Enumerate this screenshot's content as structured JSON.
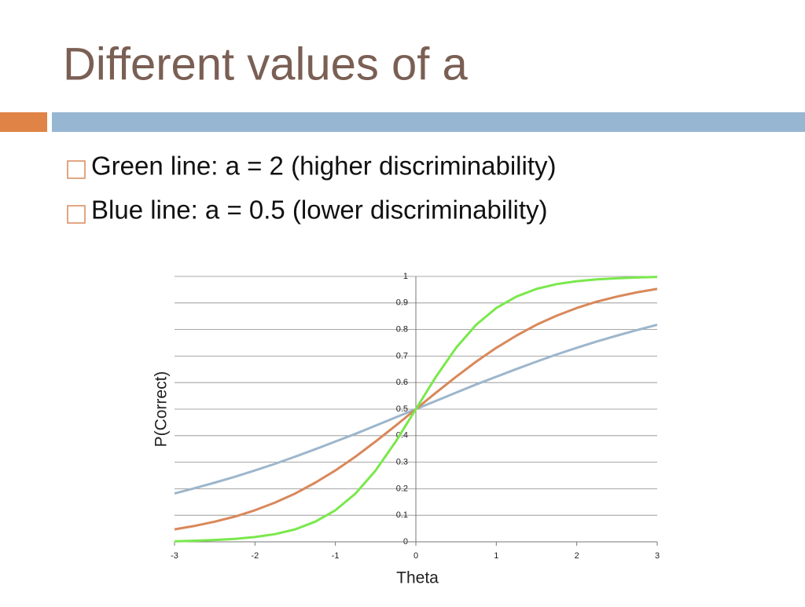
{
  "header": {
    "title": "Different values of a"
  },
  "bullets": [
    "Green line: a = 2 (higher discriminability)",
    "Blue line: a = 0.5 (lower discriminability)"
  ],
  "chart_data": {
    "type": "line",
    "xlabel": "Theta",
    "ylabel": "P(Correct)",
    "x": [
      -3,
      -2.75,
      -2.5,
      -2.25,
      -2,
      -1.75,
      -1.5,
      -1.25,
      -1,
      -0.75,
      -0.5,
      -0.25,
      0,
      0.25,
      0.5,
      0.75,
      1,
      1.25,
      1.5,
      1.75,
      2,
      2.25,
      2.5,
      2.75,
      3
    ],
    "series": [
      {
        "color": "#9db6cc",
        "values": [
          0.182,
          0.202,
          0.223,
          0.245,
          0.269,
          0.294,
          0.321,
          0.349,
          0.378,
          0.407,
          0.438,
          0.469,
          0.5,
          0.531,
          0.562,
          0.593,
          0.622,
          0.651,
          0.679,
          0.706,
          0.731,
          0.755,
          0.777,
          0.798,
          0.818
        ]
      },
      {
        "color": "#d9885a",
        "values": [
          0.047,
          0.06,
          0.076,
          0.095,
          0.119,
          0.148,
          0.182,
          0.223,
          0.269,
          0.321,
          0.378,
          0.438,
          0.5,
          0.562,
          0.622,
          0.679,
          0.731,
          0.777,
          0.818,
          0.852,
          0.881,
          0.905,
          0.924,
          0.94,
          0.953
        ]
      },
      {
        "color": "#7ae84c",
        "values": [
          0.002,
          0.004,
          0.007,
          0.011,
          0.018,
          0.029,
          0.047,
          0.076,
          0.119,
          0.182,
          0.269,
          0.378,
          0.5,
          0.622,
          0.731,
          0.818,
          0.881,
          0.924,
          0.953,
          0.971,
          0.982,
          0.989,
          0.993,
          0.996,
          0.998
        ]
      }
    ],
    "xlim": [
      -3,
      3
    ],
    "xticks": [
      -3,
      -2,
      -1,
      0,
      1,
      2,
      3
    ],
    "ylim": [
      0,
      1
    ],
    "yticks": [
      0,
      0.1,
      0.2,
      0.3,
      0.4,
      0.5,
      0.6,
      0.7,
      0.8,
      0.9,
      1
    ],
    "grid": true
  }
}
